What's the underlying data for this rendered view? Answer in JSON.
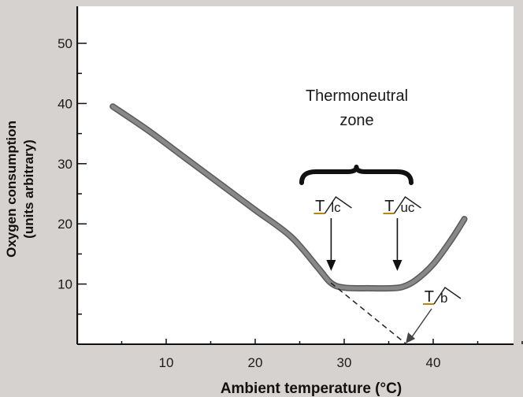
{
  "chart_data": {
    "type": "line",
    "title": "",
    "xlabel": "Ambient temperature (°C)",
    "ylabel_line1": "Oxygen consumption",
    "ylabel_line2": "(units arbitrary)",
    "xlim": [
      0,
      50
    ],
    "ylim": [
      0,
      55
    ],
    "x_ticks": [
      10,
      20,
      30,
      40
    ],
    "y_ticks": [
      10,
      20,
      30,
      40,
      50
    ],
    "grid": false,
    "series": [
      {
        "x": [
          4,
          8,
          12,
          16,
          20,
          24,
          27,
          28.5,
          30,
          33,
          35,
          36.5,
          38,
          40,
          42,
          43.5
        ],
        "values": [
          39.5,
          35.5,
          31.1,
          26.7,
          22.3,
          17.9,
          12.8,
          10.2,
          9.4,
          9.3,
          9.3,
          9.5,
          10.6,
          13.3,
          17.3,
          20.8
        ]
      }
    ],
    "extrapolation": {
      "x": [
        28.5,
        37
      ],
      "values": [
        10.2,
        0
      ]
    },
    "annotations": {
      "zone_label_line1": "Thermoneutral",
      "zone_label_line2": "zone",
      "lower_critical_T": "T",
      "lower_critical_sub": "lc",
      "lower_critical_x": 28,
      "upper_critical_T": "T",
      "upper_critical_sub": "uc",
      "upper_critical_x": 36.5,
      "body_T": "T",
      "body_sub": "b",
      "body_x": 37
    },
    "colors": {
      "curve": "#888888",
      "panel": "#ffffff",
      "axis": "#111111"
    }
  }
}
